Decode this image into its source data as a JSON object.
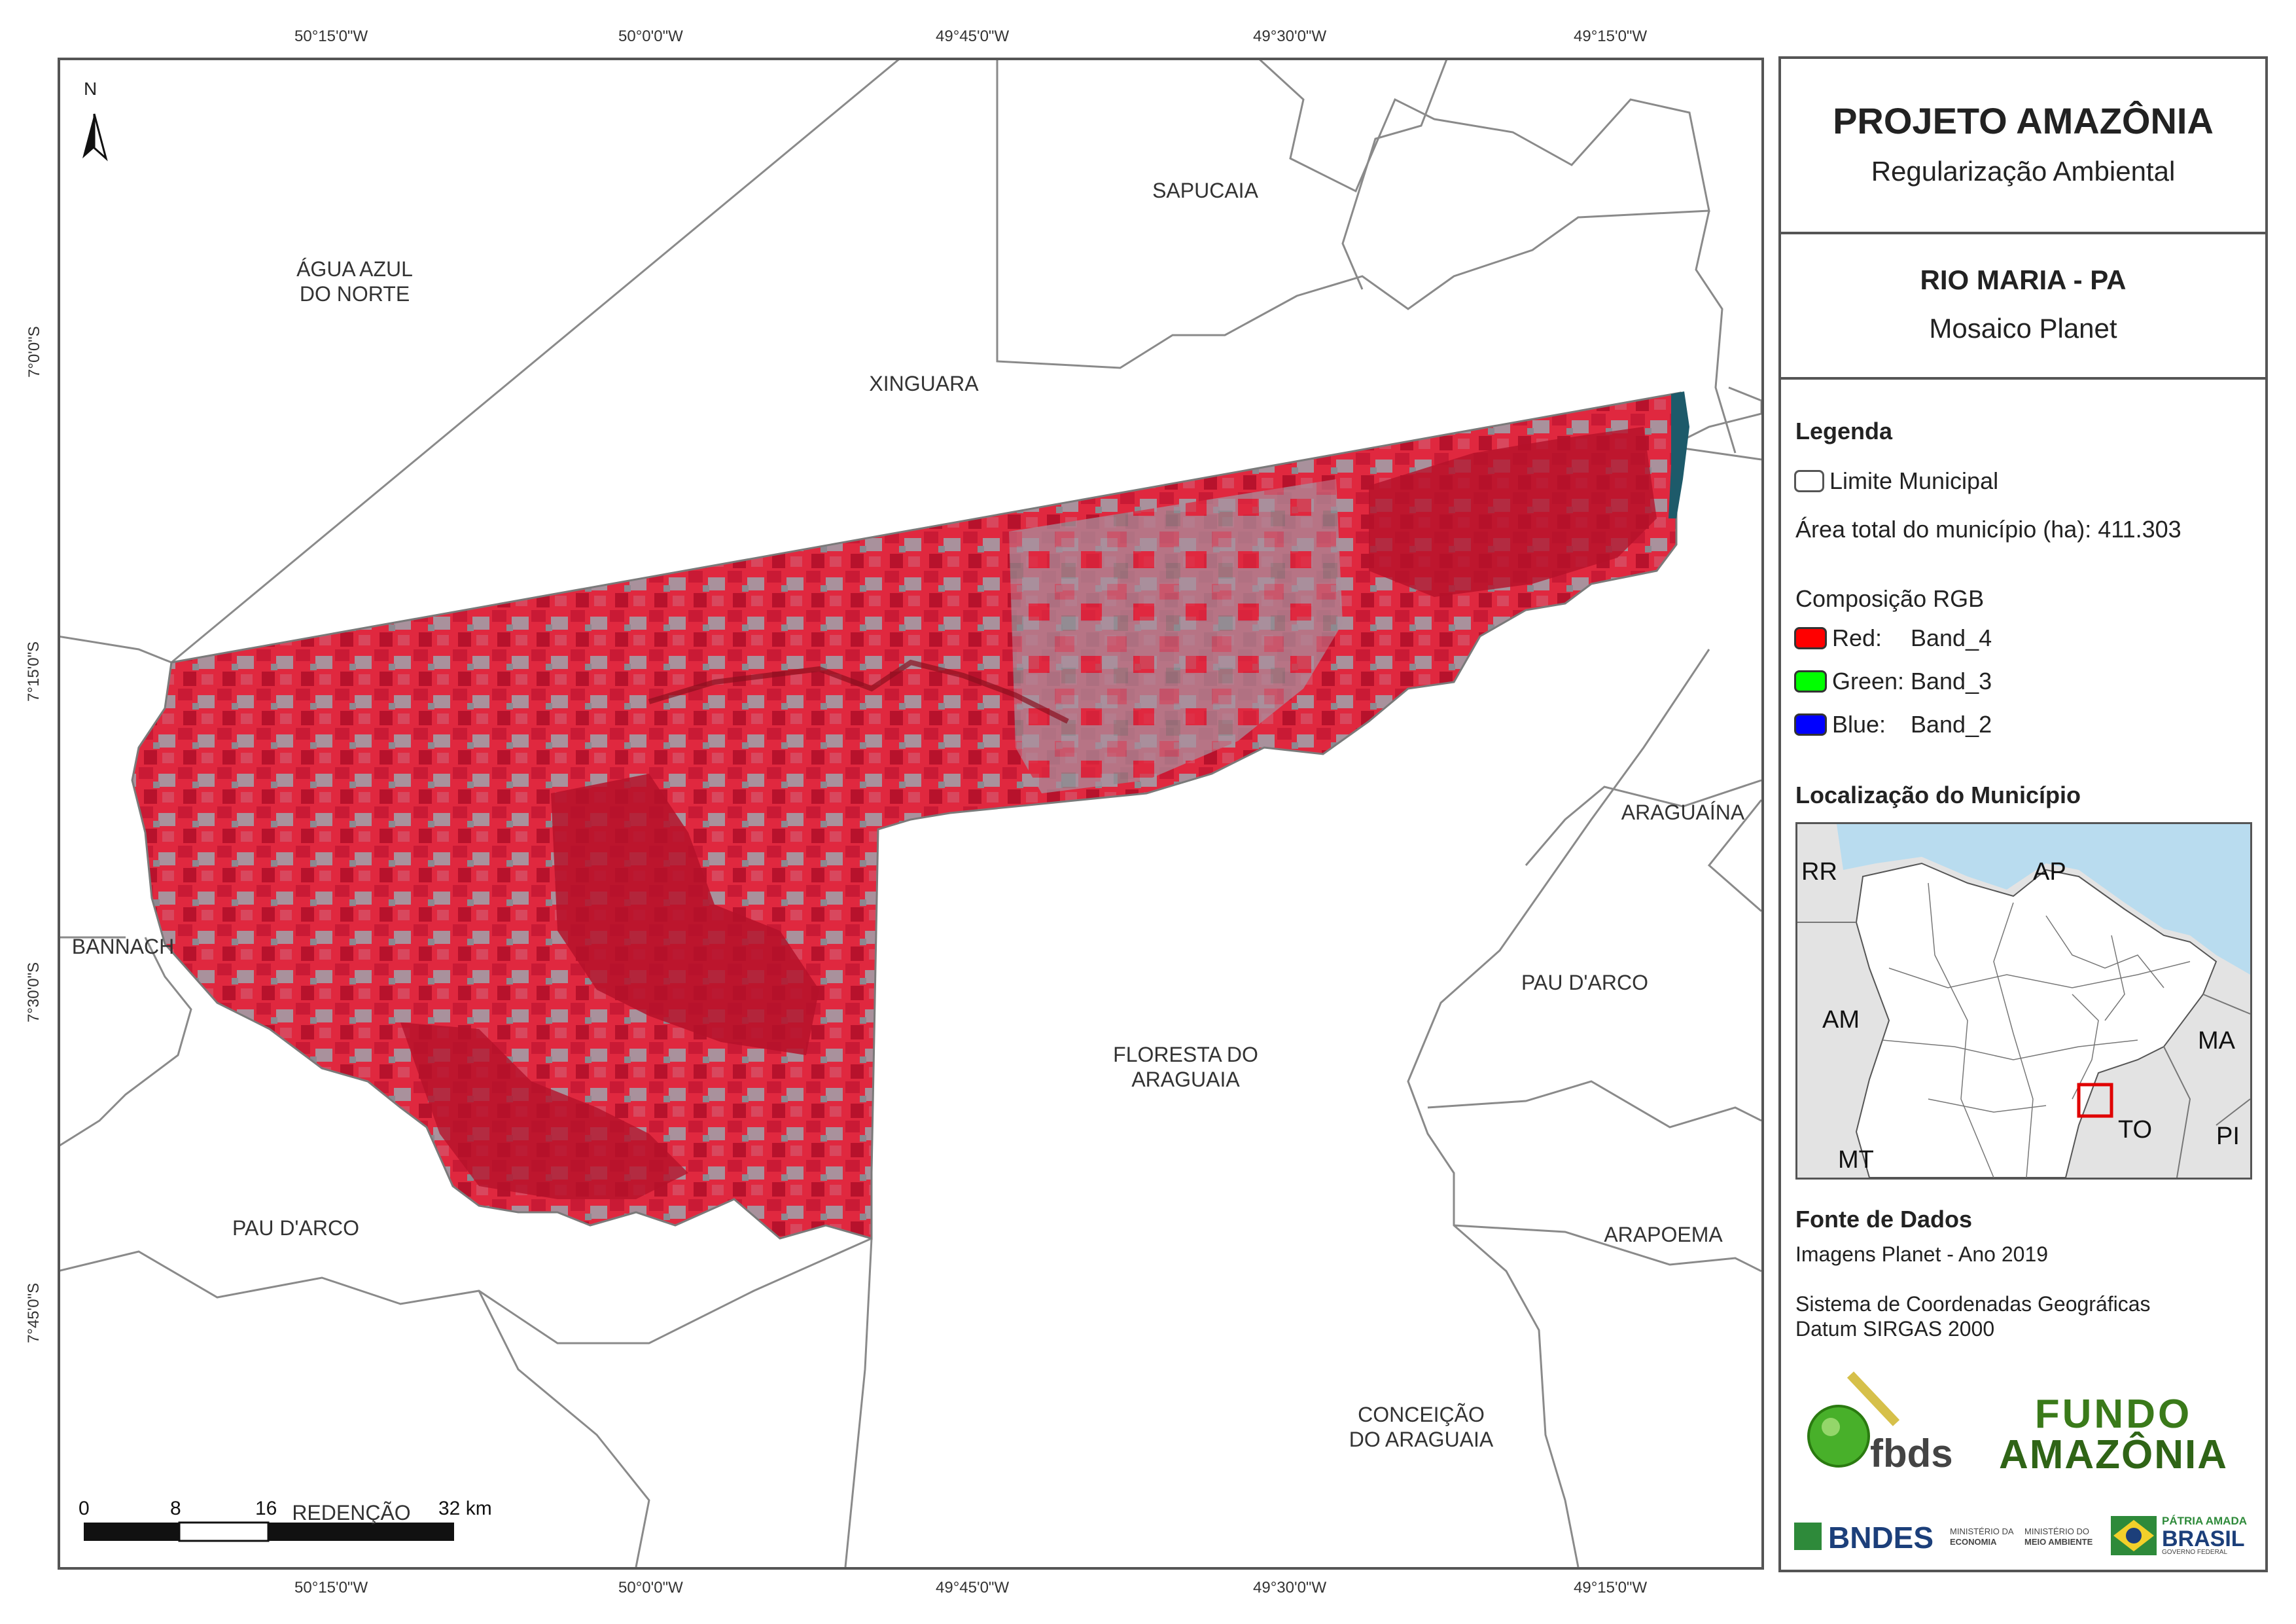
{
  "map": {
    "north_label": "N",
    "coords_top": [
      "50°15'0\"W",
      "50°0'0\"W",
      "49°45'0\"W",
      "49°30'0\"W",
      "49°15'0\"W"
    ],
    "coords_bottom": [
      "50°15'0\"W",
      "50°0'0\"W",
      "49°45'0\"W",
      "49°30'0\"W",
      "49°15'0\"W"
    ],
    "coords_left": [
      "7°0'0\"S",
      "7°15'0\"S",
      "7°30'0\"S",
      "7°45'0\"S"
    ],
    "municipalities": {
      "agua_azul": "ÁGUA AZUL\nDO NORTE",
      "sapucaia": "SAPUCAIA",
      "xinguara": "XINGUARA",
      "araguaina": "ARAGUAÍNA",
      "bannach": "BANNACH",
      "pau_darco_to": "PAU D'ARCO",
      "floresta": "FLORESTA DO\nARAGUAIA",
      "pau_darco_pa": "PAU D'ARCO",
      "arapoema": "ARAPOEMA",
      "conceicao": "CONCEIÇÃO\nDO ARAGUAIA",
      "redencao": "REDENÇÃO"
    },
    "scale": {
      "ticks": [
        "0",
        "8",
        "16",
        "32 km"
      ]
    },
    "colors": {
      "raster_red": "#e0283f",
      "raster_dark": "#b5122a",
      "raster_grey": "#9b8a94",
      "boundary": "#8a8a8a"
    }
  },
  "panel": {
    "title": "PROJETO AMAZÔNIA",
    "subtitle": "Regularização Ambiental",
    "municipio": "RIO MARIA - PA",
    "mosaico": "Mosaico Planet",
    "legend_title": "Legenda",
    "legend_limit": "Limite Municipal",
    "area_total": "Área total do município (ha): 411.303",
    "rgb_title": "Composição RGB",
    "rgb_red_label": "Red:",
    "rgb_red_band": "Band_4",
    "rgb_green_label": "Green:",
    "rgb_green_band": "Band_3",
    "rgb_blue_label": "Blue:",
    "rgb_blue_band": "Band_2",
    "location_title": "Localização do Município",
    "inset_labels": {
      "rr": "RR",
      "ap": "AP",
      "am": "AM",
      "ma": "MA",
      "to": "TO",
      "mt": "MT",
      "pi": "PI"
    },
    "sources_title": "Fonte de Dados",
    "source_images": "Imagens Planet - Ano 2019",
    "source_coord1": "Sistema de Coordenadas Geográficas",
    "source_coord2": "Datum SIRGAS 2000",
    "logo_fbds": "fbds",
    "logo_fundo1": "FUNDO",
    "logo_fundo2": "AMAZÔNIA",
    "logo_bndes": "BNDES",
    "logo_min_econ1": "MINISTÉRIO DA",
    "logo_min_econ2": "ECONOMIA",
    "logo_min_amb1": "MINISTÉRIO DO",
    "logo_min_amb2": "MEIO AMBIENTE",
    "logo_patria1": "PÁTRIA AMADA",
    "logo_patria2": "BRASIL",
    "logo_patria3": "GOVERNO FEDERAL",
    "colors": {
      "red": "#ff0000",
      "green": "#00ff00",
      "blue": "#0000ff",
      "ocean": "#b9dcef",
      "land": "#e3e3e3"
    }
  }
}
